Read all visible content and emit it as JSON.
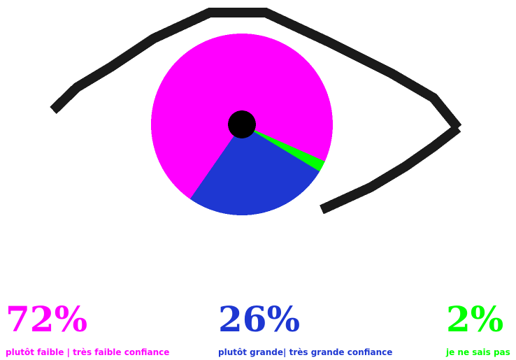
{
  "chart_data": {
    "type": "pie",
    "categories": [
      "plutôt faible | très faible confiance",
      "plutôt grande| très grande confiance",
      "je ne sais pas"
    ],
    "values": [
      72,
      26,
      2
    ],
    "value_labels": [
      "72%",
      "26%",
      "2%"
    ],
    "colors": [
      "#ff00ff",
      "#1e37d2",
      "#00ff00"
    ]
  }
}
